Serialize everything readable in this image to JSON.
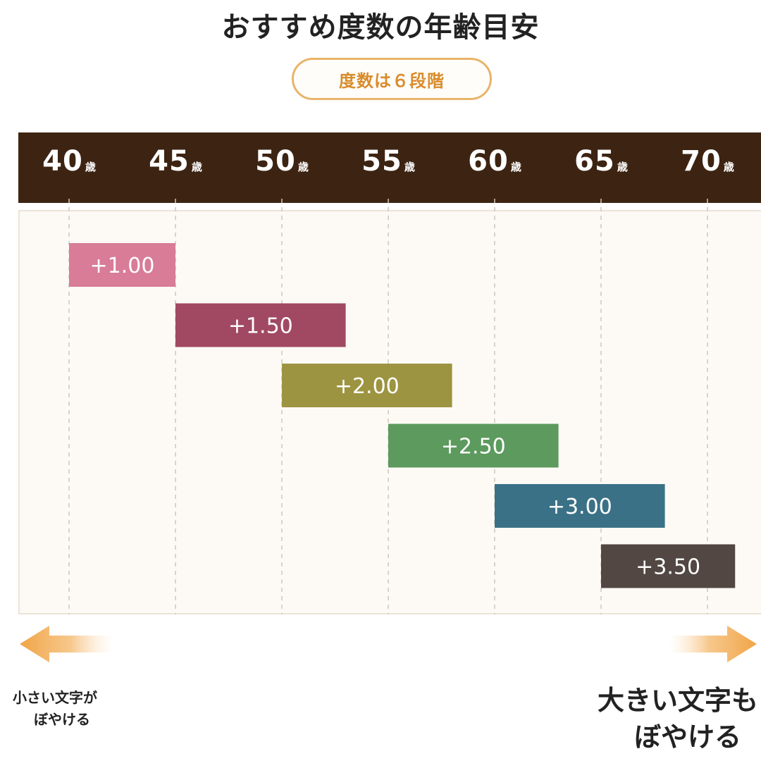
{
  "title": "おすすめ度数の年齢目安",
  "badge": "度数は６段階",
  "notes": {
    "left_line1": "小さい文字が",
    "left_line2": "ぼやける",
    "right_line1": "大きい文字も",
    "right_line2": "ぼやける"
  },
  "colors": {
    "header_bg": "#3d2412",
    "badge_border": "#e9b46a",
    "badge_text": "#d98c2c",
    "arrow": "#f0a445"
  },
  "chart_data": {
    "type": "gantt",
    "axis_unit": "歳",
    "ticks": [
      "40",
      "45",
      "50",
      "55",
      "60",
      "65",
      "70"
    ],
    "xlim": [
      40,
      70
    ],
    "bars": [
      {
        "label": "+1.00",
        "start": 40,
        "end": 45,
        "color": "#d87c98"
      },
      {
        "label": "+1.50",
        "start": 45,
        "end": 53,
        "color": "#a14962"
      },
      {
        "label": "+2.00",
        "start": 50,
        "end": 58,
        "color": "#9d9441"
      },
      {
        "label": "+2.50",
        "start": 55,
        "end": 63,
        "color": "#5c9a5e"
      },
      {
        "label": "+3.00",
        "start": 60,
        "end": 68,
        "color": "#3b7186"
      },
      {
        "label": "+3.50",
        "start": 65,
        "end": 71.3,
        "color": "#524742"
      }
    ]
  }
}
